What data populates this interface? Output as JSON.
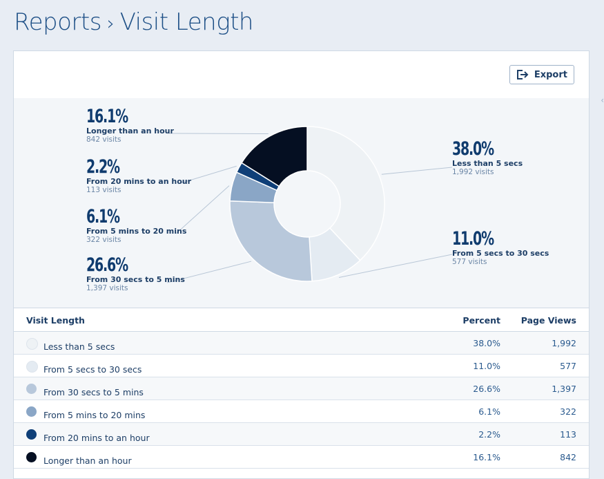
{
  "header": {
    "section": "Reports",
    "separator": "›",
    "title": "Visit Length"
  },
  "toolbar": {
    "export_label": "Export",
    "export_icon": "export-icon"
  },
  "chart_data": {
    "type": "pie",
    "donut": true,
    "categories": [
      "Less than 5 secs",
      "From 5 secs to 30 secs",
      "From 30 secs to 5 mins",
      "From 5 mins to 20 mins",
      "From 20 mins to an hour",
      "Longer than an hour"
    ],
    "values": [
      38.0,
      11.0,
      26.6,
      6.1,
      2.2,
      16.1
    ],
    "colors": [
      "#eef2f5",
      "#e4ebf2",
      "#b8c8db",
      "#8aa6c6",
      "#0f3f78",
      "#050f22"
    ],
    "callouts": [
      {
        "pct": "38.0%",
        "label": "Less than 5 secs",
        "visits": "1,992 visits"
      },
      {
        "pct": "11.0%",
        "label": "From 5 secs to 30 secs",
        "visits": "577 visits"
      },
      {
        "pct": "26.6%",
        "label": "From 30 secs to 5 mins",
        "visits": "1,397 visits"
      },
      {
        "pct": "6.1%",
        "label": "From 5 mins to 20 mins",
        "visits": "322 visits"
      },
      {
        "pct": "2.2%",
        "label": "From 20 mins to an hour",
        "visits": "113 visits"
      },
      {
        "pct": "16.1%",
        "label": "Longer than an hour",
        "visits": "842 visits"
      }
    ]
  },
  "table": {
    "columns": [
      "Visit Length",
      "Percent",
      "Page Views"
    ],
    "rows": [
      {
        "label": "Less than 5 secs",
        "percent": "38.0%",
        "views": "1,992",
        "color": "#eef2f5"
      },
      {
        "label": "From 5 secs to 30 secs",
        "percent": "11.0%",
        "views": "577",
        "color": "#e4ebf2"
      },
      {
        "label": "From 30 secs to 5 mins",
        "percent": "26.6%",
        "views": "1,397",
        "color": "#b8c8db"
      },
      {
        "label": "From 5 mins to 20 mins",
        "percent": "6.1%",
        "views": "322",
        "color": "#8aa6c6"
      },
      {
        "label": "From 20 mins to an hour",
        "percent": "2.2%",
        "views": "113",
        "color": "#0f3f78"
      },
      {
        "label": "Longer than an hour",
        "percent": "16.1%",
        "views": "842",
        "color": "#050f22"
      }
    ]
  }
}
